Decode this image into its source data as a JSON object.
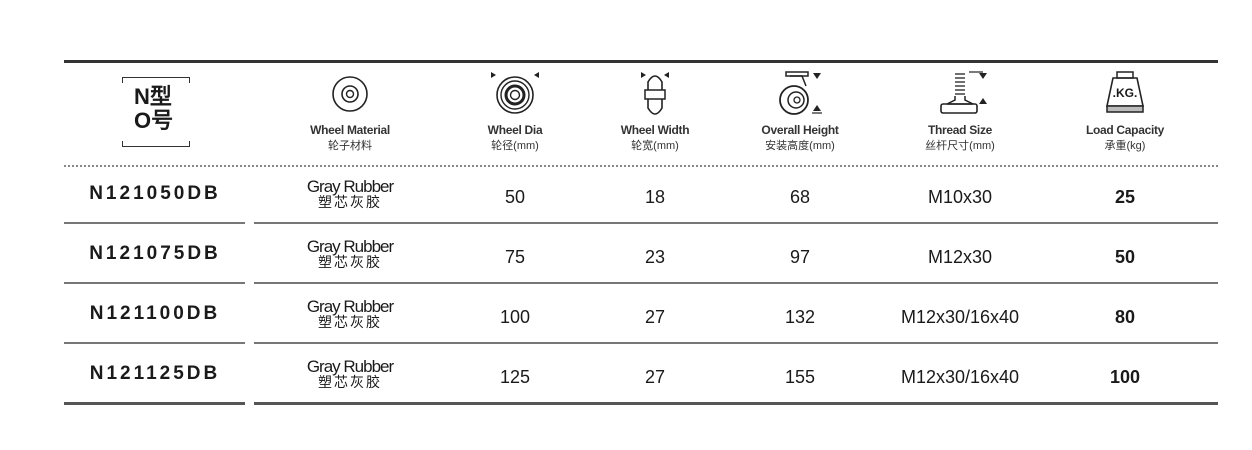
{
  "header": {
    "part_no": {
      "line1": "N型",
      "line2": "O号"
    },
    "columns": [
      {
        "en": "Wheel Material",
        "cn": "轮子材料",
        "icon": "wheel-icon"
      },
      {
        "en": "Wheel Dia",
        "cn": "轮径(mm)",
        "icon": "wheel-diameter-icon"
      },
      {
        "en": "Wheel Width",
        "cn": "轮宽(mm)",
        "icon": "wheel-width-icon"
      },
      {
        "en": "Overall Height",
        "cn": "安装高度(mm)",
        "icon": "caster-height-icon"
      },
      {
        "en": "Thread Size",
        "cn": "丝杆尺寸(mm)",
        "icon": "thread-stem-icon"
      },
      {
        "en": "Load Capacity",
        "cn": "承重(kg)",
        "icon": "weight-kg-icon",
        "icon_text": ".KG."
      }
    ]
  },
  "rows": [
    {
      "part": "N121050DB",
      "material_en": "Gray Rubber",
      "material_cn": "塑芯灰胶",
      "dia": "50",
      "width": "18",
      "height": "68",
      "thread": "M10x30",
      "load": "25"
    },
    {
      "part": "N121075DB",
      "material_en": "Gray Rubber",
      "material_cn": "塑芯灰胶",
      "dia": "75",
      "width": "23",
      "height": "97",
      "thread": "M12x30",
      "load": "50"
    },
    {
      "part": "N121100DB",
      "material_en": "Gray Rubber",
      "material_cn": "塑芯灰胶",
      "dia": "100",
      "width": "27",
      "height": "132",
      "thread": "M12x30/16x40",
      "load": "80"
    },
    {
      "part": "N121125DB",
      "material_en": "Gray Rubber",
      "material_cn": "塑芯灰胶",
      "dia": "125",
      "width": "27",
      "height": "155",
      "thread": "M12x30/16x40",
      "load": "100"
    }
  ]
}
